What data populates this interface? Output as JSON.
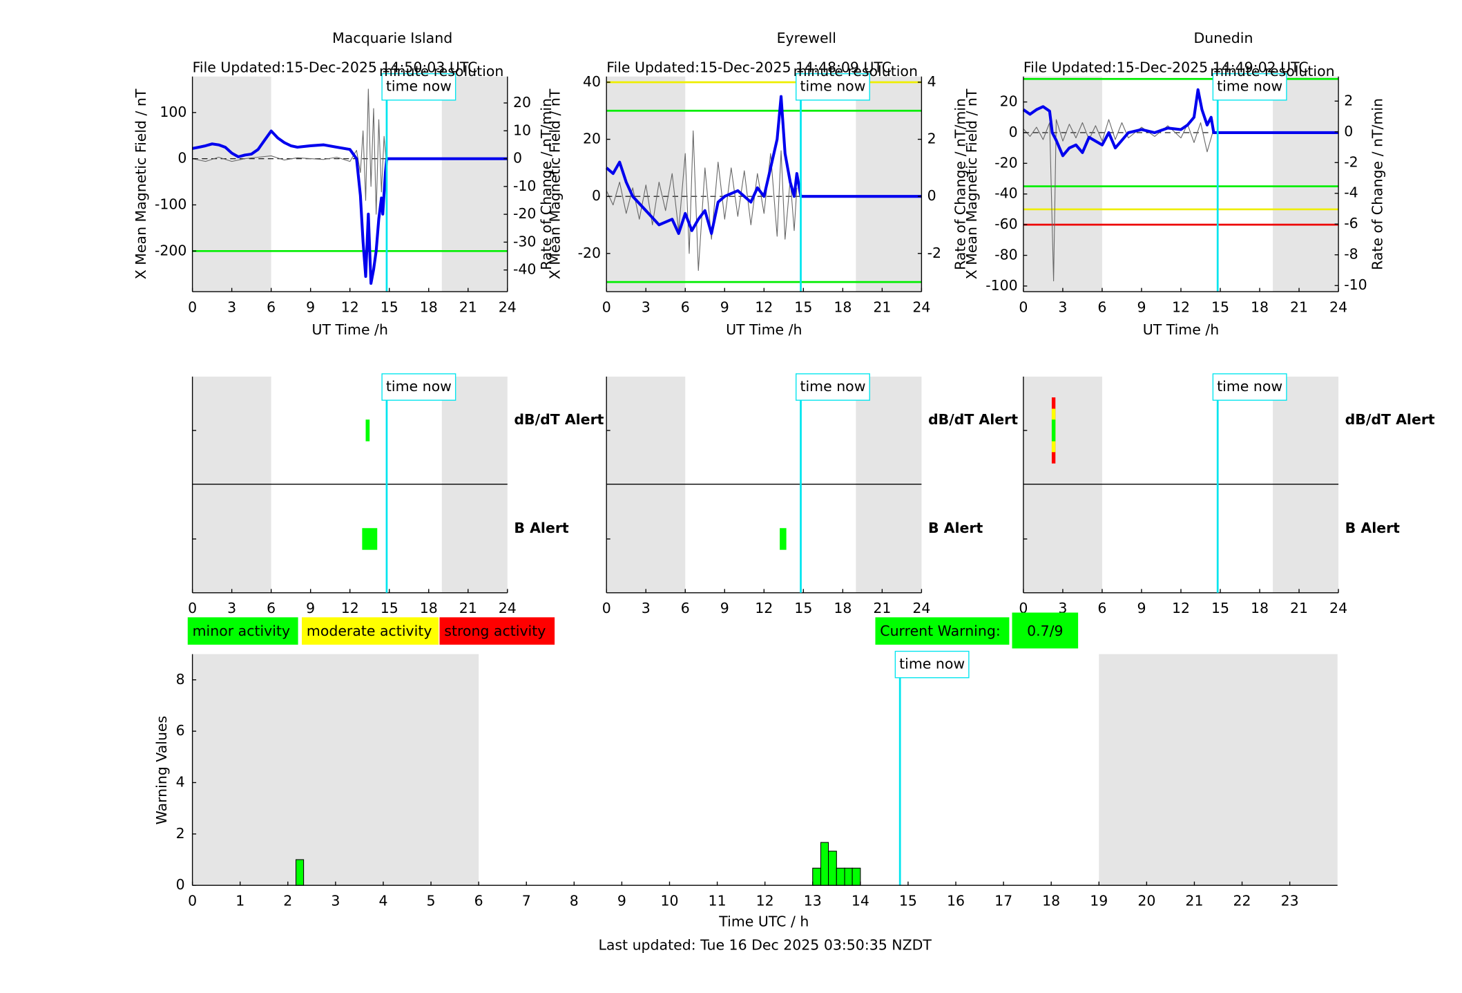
{
  "chart_data": [
    {
      "type": "line",
      "title": "Macquarie Island",
      "file_updated": "File Updated:15-Dec-2025 14:50:03 UTC",
      "resolution": "minute resolution",
      "ylabel": "X Mean Magnetic Field / nT",
      "y2label": "Rate of Change / nT/min",
      "xlabel": "UT Time /h",
      "xlim": [
        0,
        24
      ],
      "xticks": [
        0,
        3,
        6,
        9,
        12,
        15,
        18,
        21,
        24
      ],
      "ylim": [
        -288,
        178
      ],
      "yticks": [
        -200,
        -100,
        0,
        100
      ],
      "y2lim": [
        -47.8,
        29.5
      ],
      "y2ticks": [
        -40,
        -30,
        -20,
        -10,
        0,
        10,
        20
      ],
      "night": [
        [
          0,
          6
        ],
        [
          19,
          24
        ]
      ],
      "time_now": 14.8,
      "time_now_label": "time now",
      "thresholds": [
        {
          "value": -200,
          "color": "#00ee00"
        }
      ],
      "series": [
        {
          "color": "#666666",
          "axis": "y2",
          "x": [
            0,
            1,
            2,
            3,
            4,
            5,
            6,
            7,
            8,
            9,
            10,
            11,
            12,
            12.5,
            12.8,
            13,
            13.2,
            13.4,
            13.6,
            13.8,
            14,
            14.2,
            14.4,
            14.6,
            14.8
          ],
          "values": [
            0,
            -1,
            0.5,
            -1,
            0,
            0.5,
            1,
            -0.5,
            0.3,
            0,
            -0.3,
            0.5,
            -1,
            3,
            -5,
            10,
            -15,
            25,
            -10,
            18,
            -20,
            14,
            -12,
            8,
            -3
          ]
        },
        {
          "color": "#0000ee",
          "x": [
            0,
            0.5,
            1,
            1.5,
            2,
            2.5,
            3,
            3.5,
            4,
            4.5,
            5,
            5.5,
            6,
            6.5,
            7,
            7.5,
            8,
            9,
            10,
            11,
            12,
            12.5,
            12.8,
            13,
            13.2,
            13.4,
            13.6,
            13.8,
            14,
            14.2,
            14.4,
            14.5,
            14.7,
            14.8,
            24
          ],
          "values": [
            22,
            25,
            28,
            32,
            30,
            25,
            12,
            4,
            8,
            10,
            20,
            40,
            60,
            45,
            35,
            28,
            25,
            28,
            30,
            25,
            20,
            0,
            -80,
            -180,
            -255,
            -120,
            -270,
            -240,
            -200,
            -130,
            -85,
            -120,
            -30,
            0,
            0
          ]
        }
      ]
    },
    {
      "type": "line",
      "title": "Eyrewell",
      "file_updated": "File Updated:15-Dec-2025 14:48:09 UTC",
      "resolution": "minute resolution",
      "ylabel": "X Mean Magnetic Field / nT",
      "y2label": "Rate of Change / nT/min",
      "xlabel": "UT Time /h",
      "xlim": [
        0,
        24
      ],
      "xticks": [
        0,
        3,
        6,
        9,
        12,
        15,
        18,
        21,
        24
      ],
      "ylim": [
        -33.4,
        42
      ],
      "yticks": [
        -20,
        0,
        20,
        40
      ],
      "y2lim": [
        -3.34,
        4.2
      ],
      "y2ticks": [
        -2,
        0,
        2,
        4
      ],
      "night": [
        [
          0,
          6
        ],
        [
          19,
          24
        ]
      ],
      "time_now": 14.8,
      "time_now_label": "time now",
      "thresholds": [
        {
          "value": 40,
          "color": "#eeee00"
        },
        {
          "value": 30,
          "color": "#00ee00"
        },
        {
          "value": -30,
          "color": "#00ee00"
        }
      ],
      "series": [
        {
          "color": "#666666",
          "axis": "y2",
          "x": [
            0,
            0.5,
            1,
            1.5,
            2,
            2.5,
            3,
            3.5,
            4,
            4.5,
            5,
            5.5,
            6,
            6.3,
            6.6,
            7,
            7.5,
            8,
            8.5,
            9,
            9.5,
            10,
            10.5,
            11,
            11.5,
            12,
            12.5,
            13,
            13.3,
            13.6,
            14,
            14.3,
            14.5
          ],
          "values": [
            0.2,
            -0.3,
            0.5,
            -0.6,
            0.3,
            -0.8,
            0.4,
            -1,
            0.5,
            -0.5,
            0.8,
            -1.2,
            1.5,
            -2,
            2.3,
            -2.6,
            1,
            -1.5,
            1.2,
            -0.8,
            1,
            -0.7,
            0.9,
            -1,
            0.8,
            -0.6,
            1.5,
            -1.4,
            1.6,
            -1.5,
            0.6,
            -1.2,
            0.3
          ]
        },
        {
          "color": "#0000ee",
          "x": [
            0,
            0.5,
            1,
            1.5,
            2,
            3,
            4,
            5,
            5.5,
            6,
            6.5,
            7,
            7.5,
            8,
            8.5,
            9,
            10,
            11,
            11.5,
            12,
            12.5,
            13,
            13.3,
            13.6,
            14,
            14.3,
            14.5,
            14.8,
            24
          ],
          "values": [
            10,
            8,
            12,
            5,
            0,
            -5,
            -10,
            -8,
            -13,
            -6,
            -12,
            -8,
            -5,
            -13,
            -2,
            0,
            2,
            -2,
            3,
            0,
            10,
            20,
            35,
            15,
            5,
            0,
            8,
            0,
            0
          ]
        }
      ]
    },
    {
      "type": "line",
      "title": "Dunedin",
      "file_updated": "File Updated:15-Dec-2025 14:49:02 UTC",
      "resolution": "minute resolution",
      "ylabel": "X Mean Magnetic Field / nT",
      "y2label": "Rate of Change / nT/min",
      "xlabel": "UT Time /h",
      "xlim": [
        0,
        24
      ],
      "xticks": [
        0,
        3,
        6,
        9,
        12,
        15,
        18,
        21,
        24
      ],
      "ylim": [
        -103.7,
        36.6
      ],
      "yticks": [
        -100,
        -80,
        -60,
        -40,
        -20,
        0,
        20
      ],
      "y2lim": [
        -10.4,
        3.6
      ],
      "y2ticks": [
        -10,
        -8,
        -6,
        -4,
        -2,
        0,
        2
      ],
      "night": [
        [
          0,
          6
        ],
        [
          19,
          24
        ]
      ],
      "time_now": 14.8,
      "time_now_label": "time now",
      "thresholds": [
        {
          "value": 35,
          "color": "#00ee00"
        },
        {
          "value": -35,
          "color": "#00ee00"
        },
        {
          "value": -50,
          "color": "#eeee00"
        },
        {
          "value": -60,
          "color": "#ee0000"
        }
      ],
      "series": [
        {
          "color": "#666666",
          "axis": "y2",
          "x": [
            0,
            0.5,
            1,
            1.5,
            2,
            2.3,
            2.5,
            3,
            3.5,
            4,
            4.5,
            5,
            5.5,
            6,
            6.5,
            7,
            7.5,
            8,
            9,
            10,
            11,
            12,
            12.5,
            13,
            13.5,
            14,
            14.5
          ],
          "values": [
            0.2,
            -0.3,
            0.3,
            -0.5,
            0.6,
            -9.7,
            0.8,
            -0.6,
            0.5,
            -0.4,
            0.6,
            -0.5,
            0.4,
            -0.6,
            0.8,
            -0.5,
            0.6,
            -0.4,
            0.3,
            -0.3,
            0.4,
            -0.4,
            0.5,
            -0.7,
            0.6,
            -1.3,
            0.2
          ]
        },
        {
          "color": "#0000ee",
          "x": [
            0,
            0.5,
            1,
            1.5,
            2,
            2.2,
            2.5,
            3,
            3.5,
            4,
            4.5,
            5,
            6,
            6.5,
            7,
            7.5,
            8,
            9,
            10,
            11,
            12,
            12.5,
            13,
            13.3,
            13.6,
            14,
            14.3,
            14.5,
            14.8,
            24
          ],
          "values": [
            15,
            12,
            15,
            17,
            14,
            0,
            -5,
            -15,
            -10,
            -8,
            -13,
            -3,
            -8,
            0,
            -10,
            -5,
            0,
            2,
            0,
            3,
            2,
            5,
            10,
            28,
            15,
            5,
            10,
            0,
            0,
            0
          ]
        }
      ]
    },
    {
      "type": "alert",
      "xlim": [
        0,
        24
      ],
      "xticks": [
        0,
        3,
        6,
        9,
        12,
        15,
        18,
        21,
        24
      ],
      "night": [
        [
          0,
          6
        ],
        [
          19,
          24
        ]
      ],
      "time_now": 14.8,
      "time_now_label": "time now",
      "rows": [
        {
          "label": "dB/dT Alert",
          "color": "#000000",
          "events": [
            {
              "start": 13.2,
              "end": 13.5,
              "colors": [
                "#00ff00"
              ]
            }
          ]
        },
        {
          "label": "B Alert",
          "color": "#0000ff",
          "events": [
            {
              "start": 12.93,
              "end": 14.08,
              "colors": [
                "#00ff00"
              ]
            }
          ]
        }
      ]
    },
    {
      "type": "alert",
      "xlim": [
        0,
        24
      ],
      "xticks": [
        0,
        3,
        6,
        9,
        12,
        15,
        18,
        21,
        24
      ],
      "night": [
        [
          0,
          6
        ],
        [
          19,
          24
        ]
      ],
      "time_now": 14.8,
      "time_now_label": "time now",
      "rows": [
        {
          "label": "dB/dT Alert",
          "color": "#000000",
          "events": []
        },
        {
          "label": "B Alert",
          "color": "#0000ff",
          "events": [
            {
              "start": 13.2,
              "end": 13.7,
              "colors": [
                "#00ff00"
              ]
            }
          ]
        }
      ]
    },
    {
      "type": "alert",
      "xlim": [
        0,
        24
      ],
      "xticks": [
        0,
        3,
        6,
        9,
        12,
        15,
        18,
        21,
        24
      ],
      "night": [
        [
          0,
          6
        ],
        [
          19,
          24
        ]
      ],
      "time_now": 14.8,
      "time_now_label": "time now",
      "rows": [
        {
          "label": "dB/dT Alert",
          "color": "#000000",
          "events": [
            {
              "start": 2.16,
              "end": 2.44,
              "colors": [
                "#00ff00",
                "#ffff00",
                "#ff0000"
              ]
            }
          ]
        },
        {
          "label": "B Alert",
          "color": "#0000ff",
          "events": []
        }
      ]
    },
    {
      "type": "bar",
      "xlabel": "Time UTC / h",
      "ylabel": "Warning Values",
      "xlim": [
        0,
        24
      ],
      "xticks": [
        0,
        1,
        2,
        3,
        4,
        5,
        6,
        7,
        8,
        9,
        10,
        11,
        12,
        13,
        14,
        15,
        16,
        17,
        18,
        19,
        20,
        21,
        22,
        23
      ],
      "ylim": [
        0,
        9
      ],
      "yticks": [
        0,
        2,
        4,
        6,
        8
      ],
      "night": [
        [
          0,
          6
        ],
        [
          19,
          24
        ]
      ],
      "time_now": 14.83,
      "time_now_label": "time now",
      "color": "#00ff00",
      "bars": [
        {
          "start": 2.17,
          "end": 2.33,
          "value": 1
        },
        {
          "start": 13,
          "end": 13.17,
          "value": 0.67
        },
        {
          "start": 13.17,
          "end": 13.33,
          "value": 1.67
        },
        {
          "start": 13.33,
          "end": 13.5,
          "value": 1.33
        },
        {
          "start": 13.5,
          "end": 13.67,
          "value": 0.67
        },
        {
          "start": 13.67,
          "end": 13.83,
          "value": 0.67
        },
        {
          "start": 13.83,
          "end": 14,
          "value": 0.67
        }
      ]
    }
  ],
  "legend": [
    {
      "label": "minor activity",
      "color": "#00ff00"
    },
    {
      "label": "moderate activity",
      "color": "#ffff00"
    },
    {
      "label": "strong activity",
      "color": "#ff0000"
    }
  ],
  "current_warning": {
    "label": "Current Warning:",
    "value": "0.7/9",
    "color": "#00ff00"
  },
  "footer": "Last updated: Tue 16 Dec 2025 03:50:35 NZDT"
}
